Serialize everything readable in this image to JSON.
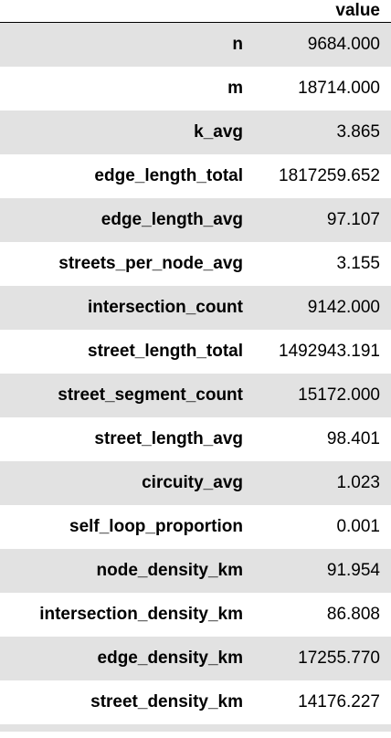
{
  "table": {
    "header": "value",
    "rows": [
      {
        "label": "n",
        "value": "9684.000"
      },
      {
        "label": "m",
        "value": "18714.000"
      },
      {
        "label": "k_avg",
        "value": "3.865"
      },
      {
        "label": "edge_length_total",
        "value": "1817259.652"
      },
      {
        "label": "edge_length_avg",
        "value": "97.107"
      },
      {
        "label": "streets_per_node_avg",
        "value": "3.155"
      },
      {
        "label": "intersection_count",
        "value": "9142.000"
      },
      {
        "label": "street_length_total",
        "value": "1492943.191"
      },
      {
        "label": "street_segment_count",
        "value": "15172.000"
      },
      {
        "label": "street_length_avg",
        "value": "98.401"
      },
      {
        "label": "circuity_avg",
        "value": "1.023"
      },
      {
        "label": "self_loop_proportion",
        "value": "0.001"
      },
      {
        "label": "node_density_km",
        "value": "91.954"
      },
      {
        "label": "intersection_density_km",
        "value": "86.808"
      },
      {
        "label": "edge_density_km",
        "value": "17255.770"
      },
      {
        "label": "street_density_km",
        "value": "14176.227"
      }
    ]
  }
}
